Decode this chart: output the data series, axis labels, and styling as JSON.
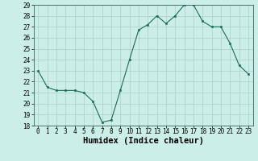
{
  "x": [
    0,
    1,
    2,
    3,
    4,
    5,
    6,
    7,
    8,
    9,
    10,
    11,
    12,
    13,
    14,
    15,
    16,
    17,
    18,
    19,
    20,
    21,
    22,
    23
  ],
  "y": [
    23.0,
    21.5,
    21.2,
    21.2,
    21.2,
    21.0,
    20.2,
    18.3,
    18.5,
    21.2,
    24.0,
    26.7,
    27.2,
    28.0,
    27.3,
    28.0,
    29.0,
    29.0,
    27.5,
    27.0,
    27.0,
    25.5,
    23.5,
    22.7
  ],
  "xlabel": "Humidex (Indice chaleur)",
  "ylim": [
    18,
    29
  ],
  "yticks": [
    18,
    19,
    20,
    21,
    22,
    23,
    24,
    25,
    26,
    27,
    28,
    29
  ],
  "xticks": [
    0,
    1,
    2,
    3,
    4,
    5,
    6,
    7,
    8,
    9,
    10,
    11,
    12,
    13,
    14,
    15,
    16,
    17,
    18,
    19,
    20,
    21,
    22,
    23
  ],
  "line_color": "#1a6b5a",
  "marker_color": "#1a6b5a",
  "bg_color": "#cceee8",
  "grid_color": "#aacccc",
  "tick_label_fontsize": 5.5,
  "xlabel_fontsize": 7.5,
  "xlabel_bold": true
}
